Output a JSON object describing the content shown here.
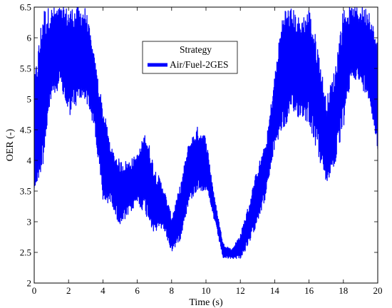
{
  "chart_data": {
    "type": "line",
    "xlabel": "Time (s)",
    "ylabel": "OER (-)",
    "xlim": [
      0,
      20
    ],
    "ylim": [
      2,
      6.5
    ],
    "xticks": [
      "0",
      "2",
      "4",
      "6",
      "8",
      "10",
      "12",
      "14",
      "16",
      "18",
      "20"
    ],
    "yticks": [
      "2",
      "2.5",
      "3",
      "3.5",
      "4",
      "4.5",
      "5",
      "5.5",
      "6",
      "6.5"
    ],
    "grid": false,
    "legend": {
      "title": "Strategy",
      "position": "top-center",
      "entries": [
        "Air/Fuel-2GES"
      ]
    },
    "series": [
      {
        "name": "Air/Fuel-2GES",
        "color": "#0000ff",
        "envelope_note": "high-frequency oscillation between lower and upper bounds",
        "x": [
          0,
          0.5,
          1,
          1.5,
          2,
          2.5,
          3,
          3.5,
          4,
          4.5,
          5,
          5.5,
          6,
          6.5,
          7,
          7.5,
          8,
          8.5,
          9,
          9.5,
          10,
          10.5,
          11,
          11.5,
          12,
          12.5,
          13,
          13.5,
          14,
          14.5,
          15,
          15.5,
          16,
          16.5,
          17,
          17.5,
          18,
          18.5,
          19,
          19.5,
          20
        ],
        "lower": [
          3.4,
          3.9,
          5.0,
          5.2,
          4.7,
          4.9,
          5.0,
          4.5,
          3.3,
          3.3,
          2.9,
          3.1,
          3.3,
          3.1,
          2.8,
          2.9,
          2.5,
          2.7,
          3.3,
          3.5,
          3.5,
          3.0,
          2.4,
          2.4,
          2.4,
          2.6,
          3.0,
          3.4,
          4.2,
          4.5,
          4.7,
          4.7,
          4.6,
          4.1,
          3.6,
          3.9,
          4.5,
          5.4,
          5.2,
          5.0,
          4.1
        ],
        "upper": [
          5.3,
          6.5,
          6.5,
          6.5,
          6.5,
          6.5,
          6.5,
          5.7,
          4.9,
          4.2,
          4.0,
          4.0,
          4.1,
          4.5,
          3.9,
          3.6,
          3.1,
          3.6,
          4.3,
          4.55,
          4.4,
          3.4,
          2.65,
          2.55,
          2.8,
          3.3,
          3.9,
          4.3,
          5.4,
          6.5,
          6.5,
          6.3,
          6.5,
          5.9,
          5.0,
          5.5,
          6.5,
          6.5,
          6.5,
          6.5,
          5.9
        ]
      }
    ]
  }
}
